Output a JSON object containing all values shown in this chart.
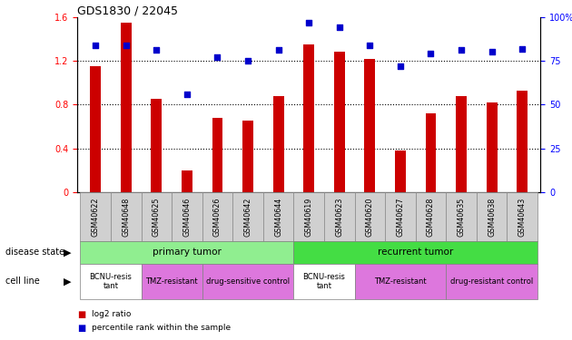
{
  "title": "GDS1830 / 22045",
  "samples": [
    "GSM40622",
    "GSM40648",
    "GSM40625",
    "GSM40646",
    "GSM40626",
    "GSM40642",
    "GSM40644",
    "GSM40619",
    "GSM40623",
    "GSM40620",
    "GSM40627",
    "GSM40628",
    "GSM40635",
    "GSM40638",
    "GSM40643"
  ],
  "log2_ratio": [
    1.15,
    1.55,
    0.85,
    0.2,
    0.68,
    0.65,
    0.88,
    1.35,
    1.28,
    1.22,
    0.38,
    0.72,
    0.88,
    0.82,
    0.93
  ],
  "percentile_rank": [
    84,
    84,
    81,
    56,
    77,
    75,
    81,
    97,
    94,
    84,
    72,
    79,
    81,
    80,
    82
  ],
  "bar_color": "#cc0000",
  "dot_color": "#0000cc",
  "ylim_left": [
    0,
    1.6
  ],
  "ylim_right": [
    0,
    100
  ],
  "yticks_left": [
    0,
    0.4,
    0.8,
    1.2,
    1.6
  ],
  "yticks_right": [
    0,
    25,
    50,
    75,
    100
  ],
  "ytick_labels_left": [
    "0",
    "0.4",
    "0.8",
    "1.2",
    "1.6"
  ],
  "ytick_labels_right": [
    "0",
    "25",
    "50",
    "75",
    "100%"
  ],
  "grid_values": [
    0.4,
    0.8,
    1.2
  ],
  "disease_state": [
    {
      "label": "primary tumor",
      "start": 0,
      "end": 6,
      "color": "#90ee90"
    },
    {
      "label": "recurrent tumor",
      "start": 7,
      "end": 14,
      "color": "#44dd44"
    }
  ],
  "cell_line": [
    {
      "label": "BCNU-resis\ntant",
      "start": 0,
      "end": 1,
      "color": "#ffffff"
    },
    {
      "label": "TMZ-resistant",
      "start": 2,
      "end": 3,
      "color": "#dd77dd"
    },
    {
      "label": "drug-sensitive control",
      "start": 4,
      "end": 6,
      "color": "#dd77dd"
    },
    {
      "label": "BCNU-resis\ntant",
      "start": 7,
      "end": 8,
      "color": "#ffffff"
    },
    {
      "label": "TMZ-resistant",
      "start": 9,
      "end": 11,
      "color": "#dd77dd"
    },
    {
      "label": "drug-resistant control",
      "start": 12,
      "end": 14,
      "color": "#dd77dd"
    }
  ],
  "left_label_disease": "disease state",
  "left_label_cell": "cell line",
  "legend_items": [
    {
      "label": "log2 ratio",
      "color": "#cc0000"
    },
    {
      "label": "percentile rank within the sample",
      "color": "#0000cc"
    }
  ],
  "bar_width": 0.35,
  "tick_label_gray": "#d0d0d0",
  "tick_label_gray_border": "#888888"
}
